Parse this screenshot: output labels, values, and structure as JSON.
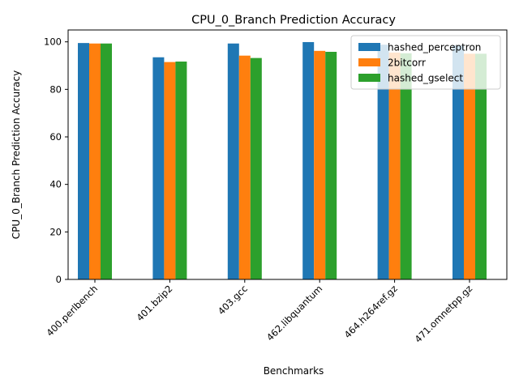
{
  "chart_data": {
    "type": "bar",
    "title": "CPU_0_Branch Prediction Accuracy",
    "xlabel": "Benchmarks",
    "ylabel": "CPU_0_Branch Prediction Accuracy",
    "ylim": [
      0,
      105
    ],
    "yticks": [
      0,
      20,
      40,
      60,
      80,
      100
    ],
    "ytick_labels": [
      "0",
      "20",
      "40",
      "60",
      "80",
      "100"
    ],
    "grid": false,
    "legend_position": "top-right",
    "categories": [
      "400.perlbench",
      "401.bzip2",
      "403.gcc",
      "462.libquantum",
      "464.h264ref.gz",
      "471.omnetpp.gz"
    ],
    "series": [
      {
        "name": "hashed_perceptron",
        "color": "#1f77b4",
        "values": [
          99.5,
          93.5,
          99.3,
          99.9,
          98.8,
          98.5
        ]
      },
      {
        "name": "2bitcorr",
        "color": "#ff7f0e",
        "values": [
          99.3,
          91.5,
          94.2,
          96.2,
          95.5,
          95.0
        ]
      },
      {
        "name": "hashed_gselect",
        "color": "#2ca02c",
        "values": [
          99.3,
          91.7,
          93.2,
          95.8,
          95.2,
          95.0
        ]
      }
    ]
  }
}
